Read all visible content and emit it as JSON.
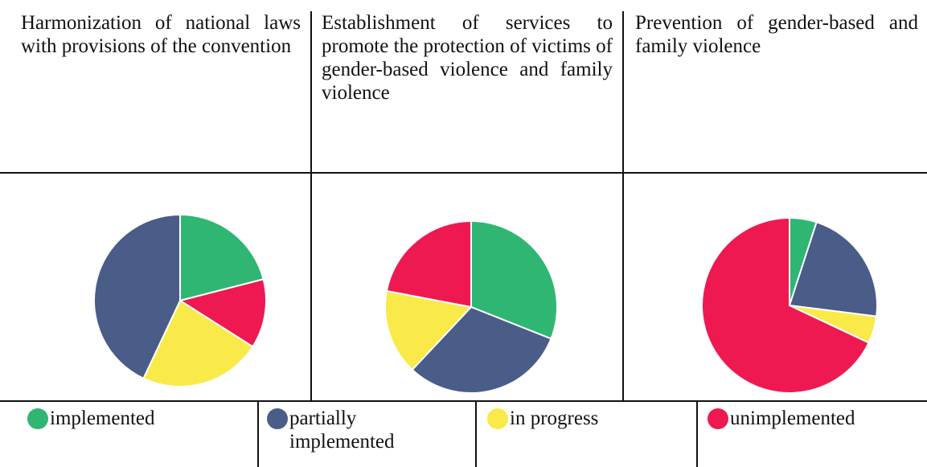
{
  "columns": [
    {
      "header": "Harmonization of national laws with provisions of the convention"
    },
    {
      "header": "Establishment of services to promote the protection of victims of gender-based violence and family violence"
    },
    {
      "header": "Prevention of gender-based and family violence"
    }
  ],
  "legend": [
    {
      "label": "implemented",
      "color": "#2fb673"
    },
    {
      "label": "partially implemented",
      "color": "#4a5c88"
    },
    {
      "label": "in progress",
      "color": "#f9ea4a"
    },
    {
      "label": "unimplemented",
      "color": "#ef1952"
    }
  ],
  "chart_data": [
    {
      "type": "pie",
      "categories": [
        "implemented",
        "unimplemented",
        "in progress",
        "partially implemented"
      ],
      "values": [
        21,
        13,
        23,
        43
      ],
      "colors": [
        "#2fb673",
        "#ef1952",
        "#f9ea4a",
        "#4a5c88"
      ]
    },
    {
      "type": "pie",
      "categories": [
        "implemented",
        "partially implemented",
        "in progress",
        "unimplemented"
      ],
      "values": [
        31,
        31,
        16,
        22
      ],
      "colors": [
        "#2fb673",
        "#4a5c88",
        "#f9ea4a",
        "#ef1952"
      ]
    },
    {
      "type": "pie",
      "categories": [
        "implemented",
        "partially implemented",
        "in progress",
        "unimplemented"
      ],
      "values": [
        5,
        22,
        5,
        68
      ],
      "colors": [
        "#2fb673",
        "#4a5c88",
        "#f9ea4a",
        "#ef1952"
      ]
    }
  ]
}
